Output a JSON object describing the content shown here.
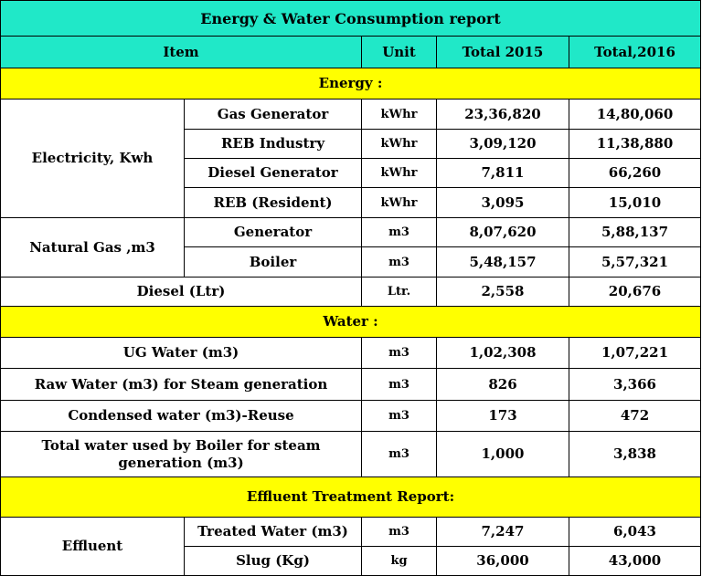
{
  "title": "Energy & Water Consumption report",
  "headers": {
    "item": "Item",
    "unit": "Unit",
    "total_2015": "Total 2015",
    "total_2016": "Total,2016"
  },
  "sections": {
    "energy": "Energy :",
    "water": "Water :",
    "effluent": "Effluent Treatment  Report:"
  },
  "energy": {
    "electricity": {
      "group": "Electricity, Kwh",
      "rows": [
        {
          "item": "Gas Generator",
          "unit": "kWhr",
          "y2015": "23,36,820",
          "y2016": "14,80,060"
        },
        {
          "item": "REB Industry",
          "unit": "kWhr",
          "y2015": "3,09,120",
          "y2016": "11,38,880"
        },
        {
          "item": "Diesel Generator",
          "unit": "kWhr",
          "y2015": "7,811",
          "y2016": "66,260"
        },
        {
          "item": "REB (Resident)",
          "unit": "kWhr",
          "y2015": "3,095",
          "y2016": "15,010"
        }
      ]
    },
    "natural_gas": {
      "group": "Natural Gas ,m3",
      "rows": [
        {
          "item": "Generator",
          "unit": "m3",
          "y2015": "8,07,620",
          "y2016": "5,88,137"
        },
        {
          "item": "Boiler",
          "unit": "m3",
          "y2015": "5,48,157",
          "y2016": "5,57,321"
        }
      ]
    },
    "diesel": {
      "item": "Diesel (Ltr)",
      "unit": "Ltr.",
      "y2015": "2,558",
      "y2016": "20,676"
    }
  },
  "water": [
    {
      "item": "UG Water (m3)",
      "unit": "m3",
      "y2015": "1,02,308",
      "y2016": "1,07,221"
    },
    {
      "item": "Raw Water (m3) for Steam generation",
      "unit": "m3",
      "y2015": "826",
      "y2016": "3,366"
    },
    {
      "item": "Condensed water (m3)-Reuse",
      "unit": "m3",
      "y2015": "173",
      "y2016": "472"
    },
    {
      "item": "Total water used by Boiler for steam generation (m3)",
      "unit": "m3",
      "y2015": "1,000",
      "y2016": "3,838"
    }
  ],
  "effluent": {
    "group": "Effluent",
    "rows": [
      {
        "item": "Treated Water (m3)",
        "unit": "m3",
        "y2015": "7,247",
        "y2016": "6,043"
      },
      {
        "item": "Slug (Kg)",
        "unit": "kg",
        "y2015": "36,000",
        "y2016": "43,000"
      }
    ]
  },
  "colors": {
    "header_bg": "#20e8c8",
    "section_bg": "#ffff00",
    "border": "#000000"
  }
}
